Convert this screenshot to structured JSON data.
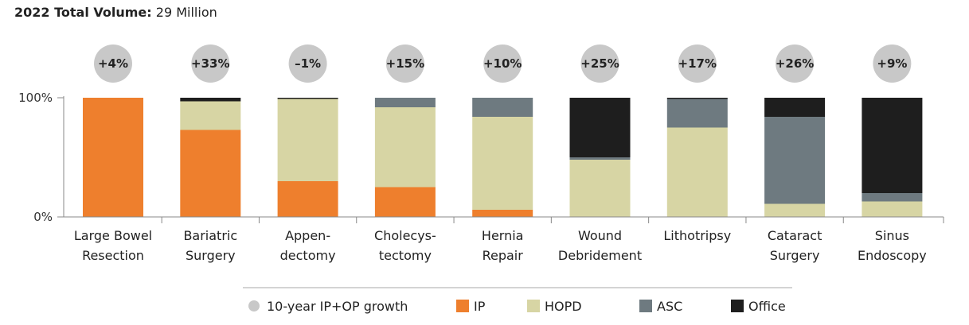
{
  "header": {
    "title_bold": "2022 Total Volume:",
    "title_value": "29 Million"
  },
  "colors": {
    "IP": "#ee7f2d",
    "HOPD": "#d7d5a4",
    "ASC": "#6e7a80",
    "Office": "#1e1e1e",
    "growth": "#c8c8c8"
  },
  "chart_data": {
    "type": "bar",
    "stacked": true,
    "ylim": [
      0,
      100
    ],
    "yticks": [
      "0%",
      "100%"
    ],
    "categories": [
      [
        "Large Bowel",
        "Resection"
      ],
      [
        "Bariatric",
        "Surgery"
      ],
      [
        "Appen-",
        "dectomy"
      ],
      [
        "Cholecys-",
        "tectomy"
      ],
      [
        "Hernia",
        "Repair"
      ],
      [
        "Wound",
        "Debridement"
      ],
      [
        "Lithotripsy"
      ],
      [
        "Cataract",
        "Surgery"
      ],
      [
        "Sinus",
        "Endoscopy"
      ]
    ],
    "growth": [
      "+4%",
      "+33%",
      "–1%",
      "+15%",
      "+10%",
      "+25%",
      "+17%",
      "+26%",
      "+9%"
    ],
    "series": [
      {
        "name": "IP",
        "values": [
          100,
          73,
          30,
          25,
          6,
          0,
          0,
          0,
          0
        ]
      },
      {
        "name": "HOPD",
        "values": [
          0,
          24,
          69,
          67,
          78,
          48,
          75,
          11,
          13
        ]
      },
      {
        "name": "ASC",
        "values": [
          0,
          0,
          0,
          8,
          16,
          2,
          24,
          73,
          7
        ]
      },
      {
        "name": "Office",
        "values": [
          0,
          3,
          1,
          0,
          0,
          50,
          1,
          16,
          80
        ]
      }
    ],
    "legend": [
      {
        "key": "growth",
        "label": "10-year IP+OP growth"
      },
      {
        "key": "IP",
        "label": "IP"
      },
      {
        "key": "HOPD",
        "label": "HOPD"
      },
      {
        "key": "ASC",
        "label": "ASC"
      },
      {
        "key": "Office",
        "label": "Office"
      }
    ],
    "legend_position": "bottom"
  }
}
